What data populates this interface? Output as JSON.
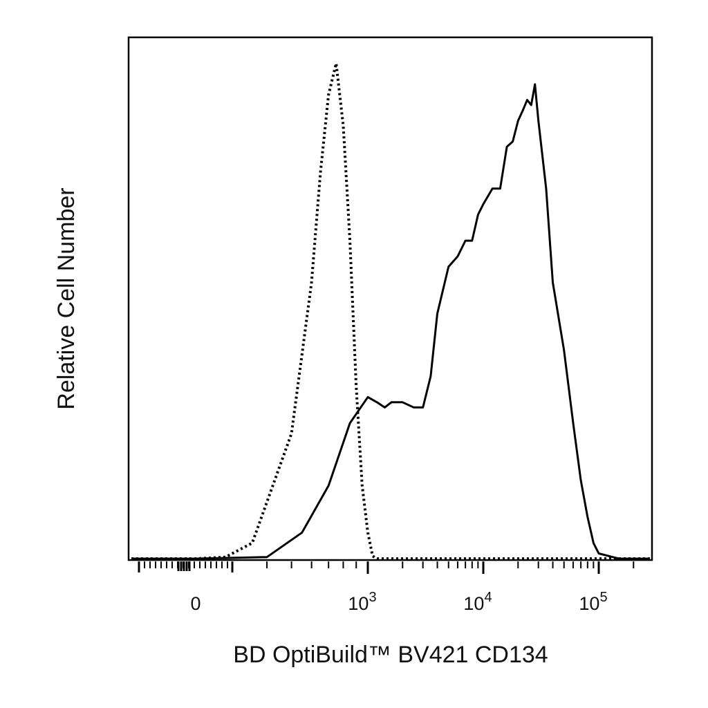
{
  "chart_data": {
    "type": "line",
    "title": "",
    "xlabel": "BD OptiBuild™ BV421 CD134",
    "ylabel": "Relative Cell Number",
    "x_scale": "biexponential",
    "x_tick_labels": [
      {
        "base": "0",
        "exp": ""
      },
      {
        "base": "10",
        "exp": "3"
      },
      {
        "base": "10",
        "exp": "4"
      },
      {
        "base": "10",
        "exp": "5"
      }
    ],
    "grid": false,
    "legend": "none",
    "colors": {
      "series": "#000000",
      "axis": "#000000"
    },
    "series": [
      {
        "style": "dotted",
        "x": [
          0,
          200,
          350,
          500,
          600,
          650,
          700,
          750,
          800,
          850,
          900,
          950,
          1000,
          1100,
          1200,
          1500
        ],
        "y": [
          0,
          0.003,
          0.03,
          0.24,
          0.53,
          0.74,
          0.89,
          0.95,
          0.83,
          0.61,
          0.33,
          0.14,
          0.05,
          0.005,
          0,
          0
        ]
      },
      {
        "style": "solid",
        "x": [
          0,
          400,
          550,
          700,
          850,
          1000,
          1200,
          1400,
          1600,
          2000,
          2500,
          3000,
          3500,
          4000,
          5000,
          6000,
          7000,
          8000,
          9000,
          10000,
          12000,
          14000,
          16000,
          18000,
          20000,
          22000,
          24000,
          26000,
          28000,
          30000,
          35000,
          40000,
          50000,
          60000,
          70000,
          80000,
          90000,
          100000,
          150000
        ],
        "y": [
          0,
          0.003,
          0.05,
          0.14,
          0.26,
          0.31,
          0.3,
          0.29,
          0.3,
          0.3,
          0.29,
          0.29,
          0.35,
          0.47,
          0.56,
          0.58,
          0.61,
          0.61,
          0.66,
          0.68,
          0.71,
          0.71,
          0.79,
          0.8,
          0.84,
          0.86,
          0.88,
          0.87,
          0.91,
          0.84,
          0.71,
          0.53,
          0.4,
          0.26,
          0.15,
          0.08,
          0.03,
          0.01,
          0
        ]
      }
    ]
  }
}
